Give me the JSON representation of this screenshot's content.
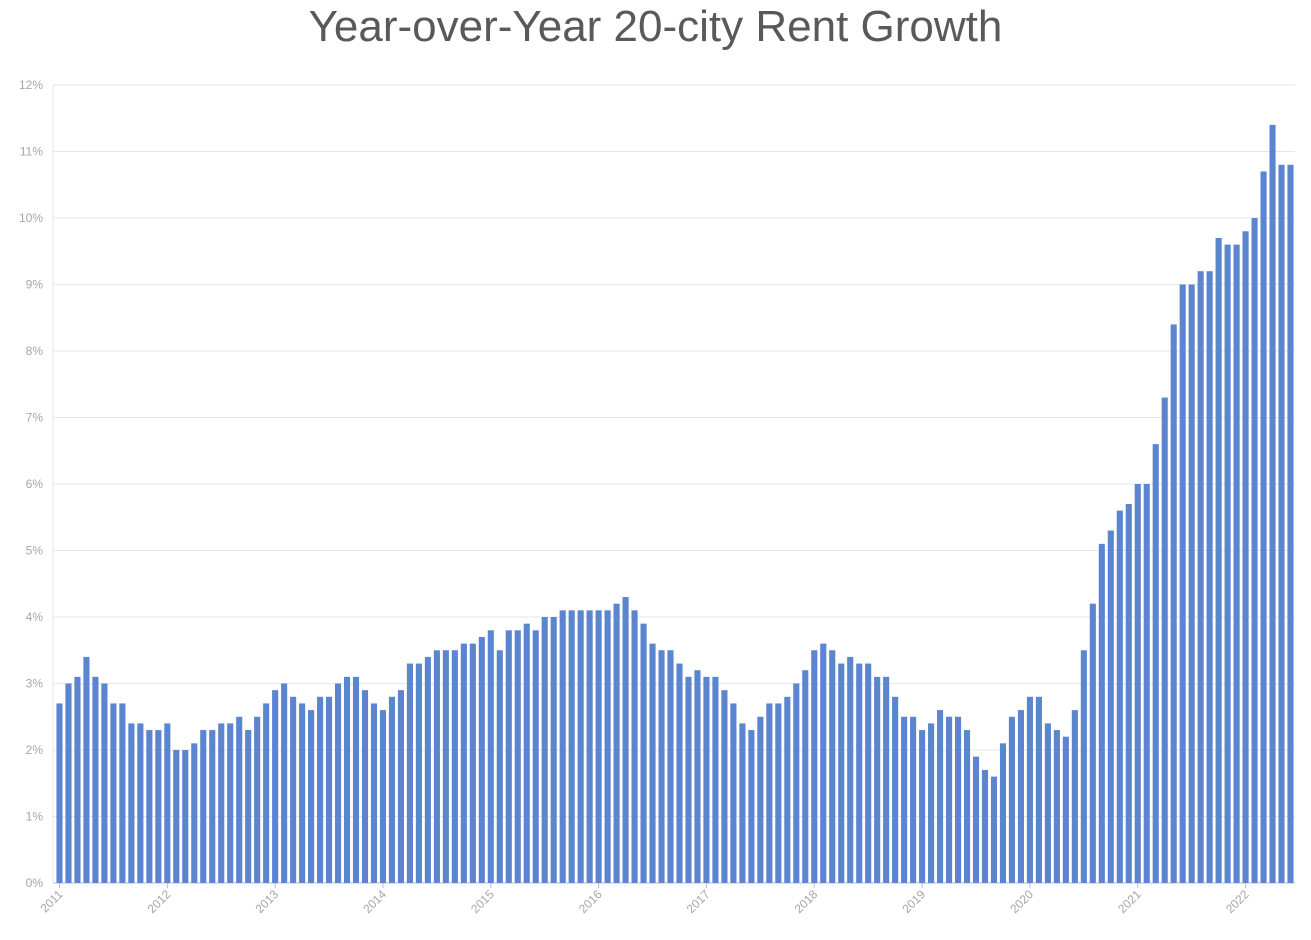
{
  "chart_data": {
    "type": "bar",
    "title": "Year-over-Year 20-city Rent Growth",
    "xlabel": "",
    "ylabel": "",
    "ylim": [
      0,
      12
    ],
    "y_ticks": [
      "0%",
      "1%",
      "2%",
      "3%",
      "4%",
      "5%",
      "6%",
      "7%",
      "8%",
      "9%",
      "10%",
      "11%",
      "12%"
    ],
    "x_tick_labels": [
      "2011",
      "2012",
      "2013",
      "2014",
      "2015",
      "2016",
      "2017",
      "2018",
      "2019",
      "2020",
      "2021",
      "2022"
    ],
    "grid": true,
    "bar_color": "#5b86cf",
    "start": "2011-01",
    "frequency": "monthly",
    "values": [
      2.7,
      3.0,
      3.1,
      3.4,
      3.1,
      3.0,
      2.7,
      2.7,
      2.4,
      2.4,
      2.3,
      2.3,
      2.4,
      2.0,
      2.0,
      2.1,
      2.3,
      2.3,
      2.4,
      2.4,
      2.5,
      2.3,
      2.5,
      2.7,
      2.9,
      3.0,
      2.8,
      2.7,
      2.6,
      2.8,
      2.8,
      3.0,
      3.1,
      3.1,
      2.9,
      2.7,
      2.6,
      2.8,
      2.9,
      3.3,
      3.3,
      3.4,
      3.5,
      3.5,
      3.5,
      3.6,
      3.6,
      3.7,
      3.8,
      3.5,
      3.8,
      3.8,
      3.9,
      3.8,
      4.0,
      4.0,
      4.1,
      4.1,
      4.1,
      4.1,
      4.1,
      4.1,
      4.2,
      4.3,
      4.1,
      3.9,
      3.6,
      3.5,
      3.5,
      3.3,
      3.1,
      3.2,
      3.1,
      3.1,
      2.9,
      2.7,
      2.4,
      2.3,
      2.5,
      2.7,
      2.7,
      2.8,
      3.0,
      3.2,
      3.5,
      3.6,
      3.5,
      3.3,
      3.4,
      3.3,
      3.3,
      3.1,
      3.1,
      2.8,
      2.5,
      2.5,
      2.3,
      2.4,
      2.6,
      2.5,
      2.5,
      2.3,
      1.9,
      1.7,
      1.6,
      2.1,
      2.5,
      2.6,
      2.8,
      2.8,
      2.4,
      2.3,
      2.2,
      2.6,
      3.5,
      4.2,
      5.1,
      5.3,
      5.6,
      5.7,
      6.0,
      6.0,
      6.6,
      7.3,
      8.4,
      9.0,
      9.0,
      9.2,
      9.2,
      9.7,
      9.6,
      9.6,
      9.8,
      10.0,
      10.7,
      11.4,
      10.8,
      10.8
    ]
  }
}
